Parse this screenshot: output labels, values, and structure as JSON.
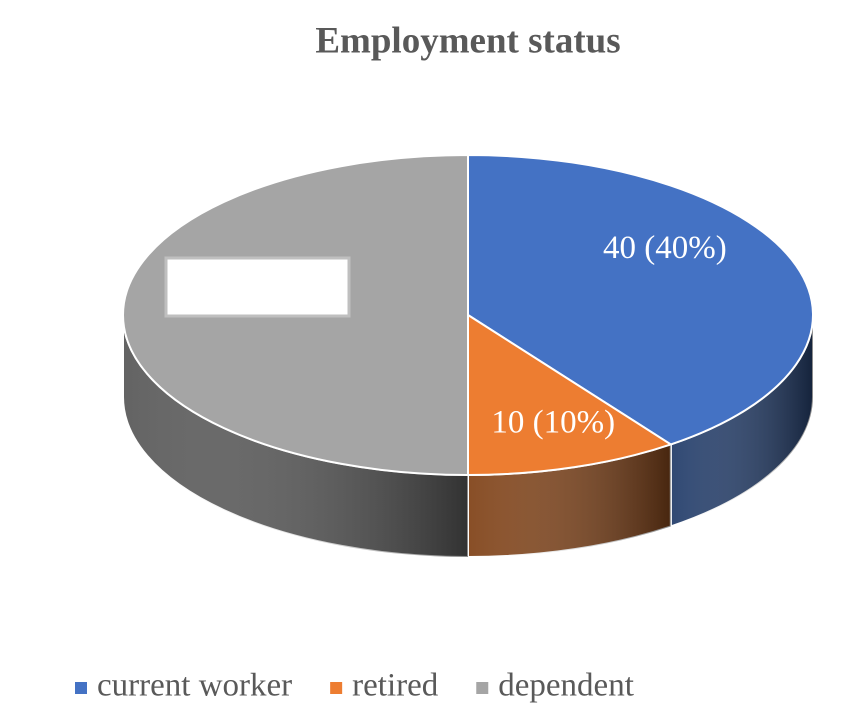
{
  "chart_data": {
    "type": "pie3d",
    "title": "Employment status",
    "categories": [
      "current worker",
      "retired",
      "dependent"
    ],
    "values": [
      40,
      10,
      50
    ],
    "value_labels": [
      "40 (40%)",
      "10 (10%)",
      null
    ],
    "colors": [
      "#4472c4",
      "#ed7d31",
      "#a5a5a5"
    ],
    "legend": "bottom"
  }
}
